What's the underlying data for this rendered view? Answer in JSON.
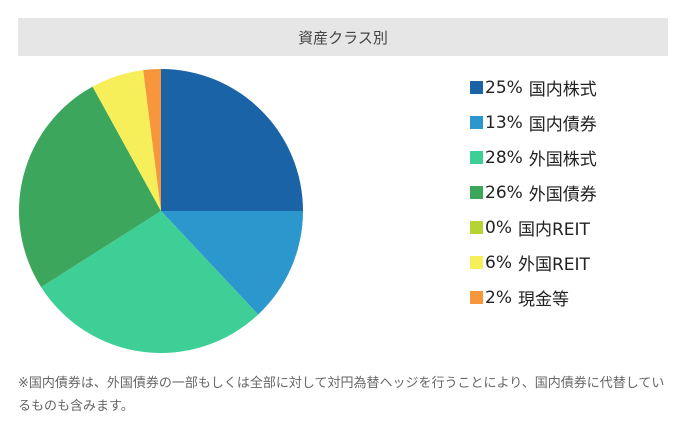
{
  "chart_data": {
    "type": "pie",
    "title": "資産クラス別",
    "categories": [
      "国内株式",
      "国内債券",
      "外国株式",
      "外国債券",
      "国内REIT",
      "外国REIT",
      "現金等"
    ],
    "values": [
      25,
      13,
      28,
      26,
      0,
      6,
      2
    ],
    "value_labels": [
      "25%",
      "13%",
      "28%",
      "26%",
      "0%",
      "6%",
      "2%"
    ],
    "colors": [
      "#1a63a6",
      "#2c97cc",
      "#3ecf96",
      "#3ca65d",
      "#b5d334",
      "#f7ef5a",
      "#f7963a"
    ],
    "start": "12 o'clock",
    "direction": "clockwise",
    "legend_position": "right"
  },
  "note": "※国内債券は、外国債券の一部もしくは全部に対して対円為替ヘッジを行うことにより、国内債券に代替しているものも含みます。"
}
